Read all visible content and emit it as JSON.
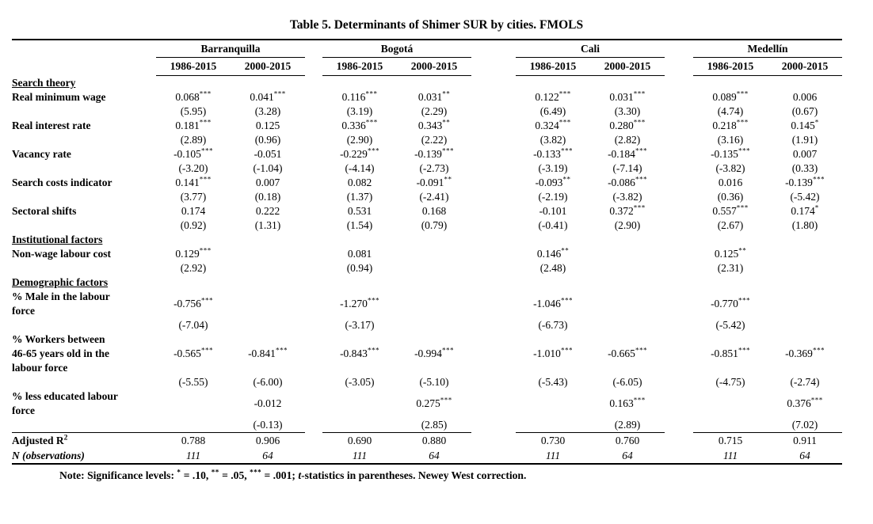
{
  "title": "Table 5. Determinants of Shimer SUR by cities. FMOLS",
  "table": {
    "city_groups": [
      {
        "city": "Barranquilla",
        "periods": [
          "1986-2015",
          "2000-2015"
        ]
      },
      {
        "city": "Bogotá",
        "periods": [
          "1986-2015",
          "2000-2015"
        ]
      },
      {
        "city": "Cali",
        "periods": [
          "1986-2015",
          "2000-2015"
        ]
      },
      {
        "city": "Medellín",
        "periods": [
          "1986-2015",
          "2000-2015"
        ]
      }
    ],
    "sections": [
      {
        "header": "Search theory",
        "rows": [
          {
            "label": [
              "Real minimum wage"
            ],
            "coefs": [
              {
                "v": "0.068",
                "s": "***"
              },
              {
                "v": "0.041",
                "s": "***"
              },
              {
                "v": "0.116",
                "s": "***"
              },
              {
                "v": "0.031",
                "s": "**"
              },
              {
                "v": "0.122",
                "s": "***"
              },
              {
                "v": "0.031",
                "s": "***"
              },
              {
                "v": "0.089",
                "s": "***"
              },
              {
                "v": "0.006",
                "s": ""
              }
            ],
            "tstats": [
              "(5.95)",
              "(3.28)",
              "(3.19)",
              "(2.29)",
              "(6.49)",
              "(3.30)",
              "(4.74)",
              "(0.67)"
            ]
          },
          {
            "label": [
              "Real interest rate"
            ],
            "coefs": [
              {
                "v": "0.181",
                "s": "***"
              },
              {
                "v": "0.125",
                "s": ""
              },
              {
                "v": "0.336",
                "s": "***"
              },
              {
                "v": "0.343",
                "s": "**"
              },
              {
                "v": "0.324",
                "s": "***"
              },
              {
                "v": "0.280",
                "s": "***"
              },
              {
                "v": "0.218",
                "s": "***"
              },
              {
                "v": "0.145",
                "s": "*"
              }
            ],
            "tstats": [
              "(2.89)",
              "(0.96)",
              "(2.90)",
              "(2.22)",
              "(3.82)",
              "(2.82)",
              "(3.16)",
              "(1.91)"
            ]
          },
          {
            "label": [
              "Vacancy rate"
            ],
            "coefs": [
              {
                "v": "-0.105",
                "s": "***"
              },
              {
                "v": "-0.051",
                "s": ""
              },
              {
                "v": "-0.229",
                "s": "***"
              },
              {
                "v": "-0.139",
                "s": "***"
              },
              {
                "v": "-0.133",
                "s": "***"
              },
              {
                "v": "-0.184",
                "s": "***"
              },
              {
                "v": "-0.135",
                "s": "***"
              },
              {
                "v": "0.007",
                "s": ""
              }
            ],
            "tstats": [
              "(-3.20)",
              "(-1.04)",
              "(-4.14)",
              "(-2.73)",
              "(-3.19)",
              "(-7.14)",
              "(-3.82)",
              "(0.33)"
            ]
          },
          {
            "label": [
              "Search costs indicator"
            ],
            "coefs": [
              {
                "v": "0.141",
                "s": "***"
              },
              {
                "v": "0.007",
                "s": ""
              },
              {
                "v": "0.082",
                "s": ""
              },
              {
                "v": "-0.091",
                "s": "**"
              },
              {
                "v": "-0.093",
                "s": "**"
              },
              {
                "v": "-0.086",
                "s": "***"
              },
              {
                "v": "0.016",
                "s": ""
              },
              {
                "v": "-0.139",
                "s": "***"
              }
            ],
            "tstats": [
              "(3.77)",
              "(0.18)",
              "(1.37)",
              "(-2.41)",
              "(-2.19)",
              "(-3.82)",
              "(0.36)",
              "(-5.42)"
            ]
          },
          {
            "label": [
              "Sectoral shifts"
            ],
            "coefs": [
              {
                "v": "0.174",
                "s": ""
              },
              {
                "v": "0.222",
                "s": ""
              },
              {
                "v": "0.531",
                "s": ""
              },
              {
                "v": "0.168",
                "s": ""
              },
              {
                "v": "-0.101",
                "s": ""
              },
              {
                "v": "0.372",
                "s": "***"
              },
              {
                "v": "0.557",
                "s": "***"
              },
              {
                "v": "0.174",
                "s": "*"
              }
            ],
            "tstats": [
              "(0.92)",
              "(1.31)",
              "(1.54)",
              "(0.79)",
              "(-0.41)",
              "(2.90)",
              "(2.67)",
              "(1.80)"
            ]
          }
        ]
      },
      {
        "header": "Institutional factors",
        "rows": [
          {
            "label": [
              "Non-wage labour cost"
            ],
            "coefs": [
              {
                "v": "0.129",
                "s": "***"
              },
              null,
              {
                "v": "0.081",
                "s": ""
              },
              null,
              {
                "v": "0.146",
                "s": "**"
              },
              null,
              {
                "v": "0.125",
                "s": "**"
              },
              null
            ],
            "tstats": [
              "(2.92)",
              null,
              "(0.94)",
              null,
              "(2.48)",
              null,
              "(2.31)",
              null
            ]
          }
        ]
      },
      {
        "header": "Demographic factors",
        "rows": [
          {
            "label": [
              "% Male in the labour",
              "force"
            ],
            "coefs": [
              {
                "v": "-0.756",
                "s": "***"
              },
              null,
              {
                "v": "-1.270",
                "s": "***"
              },
              null,
              {
                "v": "-1.046",
                "s": "***"
              },
              null,
              {
                "v": "-0.770",
                "s": "***"
              },
              null
            ],
            "tstats": [
              "(-7.04)",
              null,
              "(-3.17)",
              null,
              "(-6.73)",
              null,
              "(-5.42)",
              null
            ]
          },
          {
            "label": [
              "% Workers between",
              "46-65 years old in the",
              "labour force"
            ],
            "coefs": [
              {
                "v": "-0.565",
                "s": "***"
              },
              {
                "v": "-0.841",
                "s": "***"
              },
              {
                "v": "-0.843",
                "s": "***"
              },
              {
                "v": "-0.994",
                "s": "***"
              },
              {
                "v": "-1.010",
                "s": "***"
              },
              {
                "v": "-0.665",
                "s": "***"
              },
              {
                "v": "-0.851",
                "s": "***"
              },
              {
                "v": "-0.369",
                "s": "***"
              }
            ],
            "tstats": [
              "(-5.55)",
              "(-6.00)",
              "(-3.05)",
              "(-5.10)",
              "(-5.43)",
              "(-6.05)",
              "(-4.75)",
              "(-2.74)"
            ]
          },
          {
            "label": [
              "% less educated labour",
              "force"
            ],
            "coefs": [
              null,
              {
                "v": "-0.012",
                "s": ""
              },
              null,
              {
                "v": "0.275",
                "s": "***"
              },
              null,
              {
                "v": "0.163",
                "s": "***"
              },
              null,
              {
                "v": "0.376",
                "s": "***"
              }
            ],
            "tstats": [
              null,
              "(-0.13)",
              null,
              "(2.85)",
              null,
              "(2.89)",
              null,
              "(7.02)"
            ]
          }
        ]
      }
    ],
    "footer_rows": [
      {
        "label": "Adjusted R",
        "label_sup": "2",
        "label_italic": false,
        "values_italic": false,
        "values": [
          "0.788",
          "0.906",
          "0.690",
          "0.880",
          "0.730",
          "0.760",
          "0.715",
          "0.911"
        ]
      },
      {
        "label": "N (observations)",
        "label_sup": "",
        "label_italic": true,
        "values_italic": true,
        "values": [
          "111",
          "64",
          "111",
          "64",
          "111",
          "64",
          "111",
          "64"
        ]
      }
    ]
  },
  "note": {
    "segments": [
      {
        "text": "Note: Significance levels: "
      },
      {
        "sup": "*"
      },
      {
        "text": " = .10, "
      },
      {
        "sup": "**"
      },
      {
        "text": " = .05, "
      },
      {
        "sup": "***"
      },
      {
        "text": " = .001; "
      },
      {
        "text": "t",
        "italic": true
      },
      {
        "text": "-statistics in parentheses. Newey West correction."
      }
    ]
  }
}
